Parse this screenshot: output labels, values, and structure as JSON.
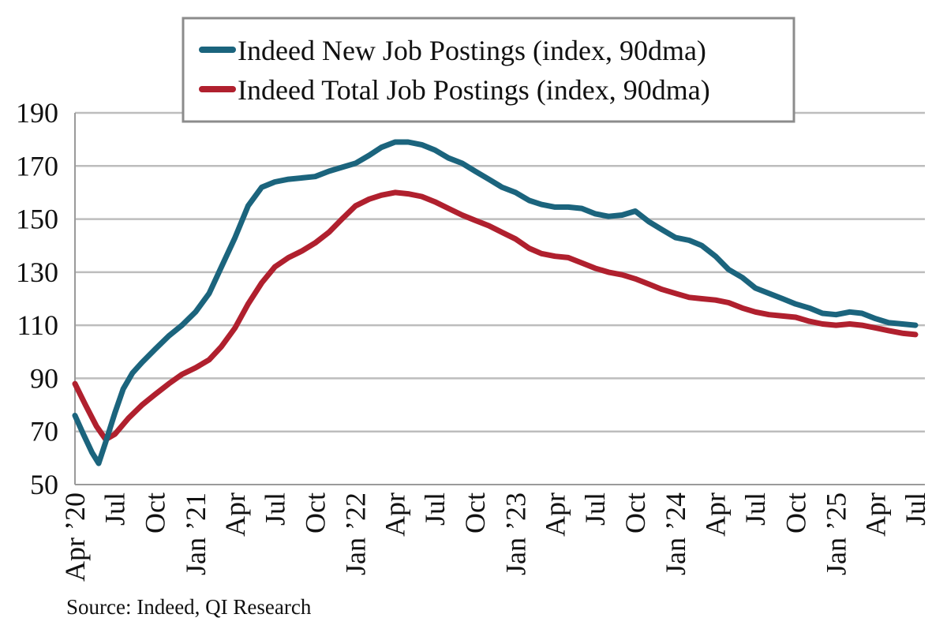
{
  "source": "Source: Indeed, QI Research",
  "colors": {
    "new_postings": "#1B647D",
    "total_postings": "#B0202E",
    "grid": "#BDBDBD",
    "axis": "#9A9A9A"
  },
  "chart_data": {
    "type": "line",
    "title": "",
    "xlabel": "",
    "ylabel": "",
    "ylim": [
      50,
      190
    ],
    "yticks": [
      50,
      70,
      90,
      110,
      130,
      150,
      170,
      190
    ],
    "grid": true,
    "legend": {
      "placement": "top-center",
      "boxed": true
    },
    "xticks": [
      {
        "label": "Apr ’20",
        "date": "2020-04-01"
      },
      {
        "label": "Jul",
        "date": "2020-07-01"
      },
      {
        "label": "Oct",
        "date": "2020-10-01"
      },
      {
        "label": "Jan ’21",
        "date": "2021-01-01"
      },
      {
        "label": "Apr",
        "date": "2021-04-01"
      },
      {
        "label": "Jul",
        "date": "2021-07-01"
      },
      {
        "label": "Oct",
        "date": "2021-10-01"
      },
      {
        "label": "Jan ’22",
        "date": "2022-01-01"
      },
      {
        "label": "Apr",
        "date": "2022-04-01"
      },
      {
        "label": "Jul",
        "date": "2022-07-01"
      },
      {
        "label": "Oct",
        "date": "2022-10-01"
      },
      {
        "label": "Jan ’23",
        "date": "2023-01-01"
      },
      {
        "label": "Apr",
        "date": "2023-04-01"
      },
      {
        "label": "Jul",
        "date": "2023-07-01"
      },
      {
        "label": "Oct",
        "date": "2023-10-01"
      },
      {
        "label": "Jan ’24",
        "date": "2024-01-01"
      },
      {
        "label": "Apr",
        "date": "2024-04-01"
      },
      {
        "label": "Jul",
        "date": "2024-07-01"
      },
      {
        "label": "Oct",
        "date": "2024-10-01"
      },
      {
        "label": "Jan ’25",
        "date": "2025-01-01"
      },
      {
        "label": "Apr",
        "date": "2025-04-01"
      },
      {
        "label": "Jul",
        "date": "2025-07-01"
      }
    ],
    "x_range": [
      "2020-04-01",
      "2025-07-01"
    ],
    "series": [
      {
        "name": "Indeed New Job Postings (index, 90dma)",
        "color": "#1B647D",
        "points": [
          [
            "2020-04-01",
            76
          ],
          [
            "2020-04-20",
            69
          ],
          [
            "2020-05-10",
            62
          ],
          [
            "2020-05-25",
            58
          ],
          [
            "2020-06-10",
            66
          ],
          [
            "2020-07-01",
            77
          ],
          [
            "2020-07-20",
            86
          ],
          [
            "2020-08-10",
            92
          ],
          [
            "2020-09-01",
            96
          ],
          [
            "2020-10-01",
            101
          ],
          [
            "2020-11-01",
            106
          ],
          [
            "2020-12-01",
            110
          ],
          [
            "2021-01-01",
            115
          ],
          [
            "2021-02-01",
            122
          ],
          [
            "2021-03-01",
            132
          ],
          [
            "2021-04-01",
            143
          ],
          [
            "2021-05-01",
            155
          ],
          [
            "2021-06-01",
            162
          ],
          [
            "2021-07-01",
            164
          ],
          [
            "2021-08-01",
            165
          ],
          [
            "2021-09-01",
            165.5
          ],
          [
            "2021-10-01",
            166
          ],
          [
            "2021-11-01",
            168
          ],
          [
            "2021-12-01",
            169.5
          ],
          [
            "2022-01-01",
            171
          ],
          [
            "2022-02-01",
            174
          ],
          [
            "2022-03-01",
            177
          ],
          [
            "2022-04-01",
            179
          ],
          [
            "2022-05-01",
            179
          ],
          [
            "2022-06-01",
            178
          ],
          [
            "2022-07-01",
            176
          ],
          [
            "2022-08-01",
            173
          ],
          [
            "2022-09-01",
            171
          ],
          [
            "2022-10-01",
            168
          ],
          [
            "2022-11-01",
            165
          ],
          [
            "2022-12-01",
            162
          ],
          [
            "2023-01-01",
            160
          ],
          [
            "2023-02-01",
            157
          ],
          [
            "2023-03-01",
            155.5
          ],
          [
            "2023-04-01",
            154.5
          ],
          [
            "2023-05-01",
            154.5
          ],
          [
            "2023-06-01",
            154
          ],
          [
            "2023-07-01",
            152
          ],
          [
            "2023-08-01",
            151
          ],
          [
            "2023-09-01",
            151.5
          ],
          [
            "2023-10-01",
            153
          ],
          [
            "2023-11-01",
            149
          ],
          [
            "2023-12-01",
            146
          ],
          [
            "2024-01-01",
            143
          ],
          [
            "2024-02-01",
            142
          ],
          [
            "2024-03-01",
            140
          ],
          [
            "2024-04-01",
            136
          ],
          [
            "2024-05-01",
            131
          ],
          [
            "2024-06-01",
            128
          ],
          [
            "2024-07-01",
            124
          ],
          [
            "2024-08-01",
            122
          ],
          [
            "2024-09-01",
            120
          ],
          [
            "2024-10-01",
            118
          ],
          [
            "2024-11-01",
            116.5
          ],
          [
            "2024-12-01",
            114.5
          ],
          [
            "2025-01-01",
            114
          ],
          [
            "2025-02-01",
            115
          ],
          [
            "2025-03-01",
            114.5
          ],
          [
            "2025-04-01",
            112.5
          ],
          [
            "2025-05-01",
            111
          ],
          [
            "2025-06-01",
            110.5
          ],
          [
            "2025-07-01",
            110
          ]
        ]
      },
      {
        "name": "Indeed Total Job Postings (index, 90dma)",
        "color": "#B0202E",
        "points": [
          [
            "2020-04-01",
            88
          ],
          [
            "2020-04-25",
            80
          ],
          [
            "2020-05-20",
            72
          ],
          [
            "2020-06-10",
            67
          ],
          [
            "2020-07-01",
            69
          ],
          [
            "2020-08-01",
            75
          ],
          [
            "2020-09-01",
            80
          ],
          [
            "2020-10-01",
            84
          ],
          [
            "2020-11-01",
            88
          ],
          [
            "2020-12-01",
            91.5
          ],
          [
            "2021-01-01",
            94
          ],
          [
            "2021-02-01",
            97
          ],
          [
            "2021-03-01",
            102
          ],
          [
            "2021-04-01",
            109
          ],
          [
            "2021-05-01",
            118
          ],
          [
            "2021-06-01",
            126
          ],
          [
            "2021-07-01",
            132
          ],
          [
            "2021-08-01",
            135.5
          ],
          [
            "2021-09-01",
            138
          ],
          [
            "2021-10-01",
            141
          ],
          [
            "2021-11-01",
            145
          ],
          [
            "2021-12-01",
            150
          ],
          [
            "2022-01-01",
            155
          ],
          [
            "2022-02-01",
            157.5
          ],
          [
            "2022-03-01",
            159
          ],
          [
            "2022-04-01",
            160
          ],
          [
            "2022-05-01",
            159.5
          ],
          [
            "2022-06-01",
            158.5
          ],
          [
            "2022-07-01",
            156.5
          ],
          [
            "2022-08-01",
            154
          ],
          [
            "2022-09-01",
            151.5
          ],
          [
            "2022-10-01",
            149.5
          ],
          [
            "2022-11-01",
            147.5
          ],
          [
            "2022-12-01",
            145
          ],
          [
            "2023-01-01",
            142.5
          ],
          [
            "2023-02-01",
            139
          ],
          [
            "2023-03-01",
            137
          ],
          [
            "2023-04-01",
            136
          ],
          [
            "2023-05-01",
            135.5
          ],
          [
            "2023-06-01",
            133.5
          ],
          [
            "2023-07-01",
            131.5
          ],
          [
            "2023-08-01",
            130
          ],
          [
            "2023-09-01",
            129
          ],
          [
            "2023-10-01",
            127.5
          ],
          [
            "2023-11-01",
            125.5
          ],
          [
            "2023-12-01",
            123.5
          ],
          [
            "2024-01-01",
            122
          ],
          [
            "2024-02-01",
            120.5
          ],
          [
            "2024-03-01",
            120
          ],
          [
            "2024-04-01",
            119.5
          ],
          [
            "2024-05-01",
            118.5
          ],
          [
            "2024-06-01",
            116.5
          ],
          [
            "2024-07-01",
            115
          ],
          [
            "2024-08-01",
            114
          ],
          [
            "2024-09-01",
            113.5
          ],
          [
            "2024-10-01",
            113
          ],
          [
            "2024-11-01",
            111.5
          ],
          [
            "2024-12-01",
            110.5
          ],
          [
            "2025-01-01",
            110
          ],
          [
            "2025-02-01",
            110.5
          ],
          [
            "2025-03-01",
            110
          ],
          [
            "2025-04-01",
            109
          ],
          [
            "2025-05-01",
            108
          ],
          [
            "2025-06-01",
            107
          ],
          [
            "2025-07-01",
            106.5
          ]
        ]
      }
    ]
  }
}
